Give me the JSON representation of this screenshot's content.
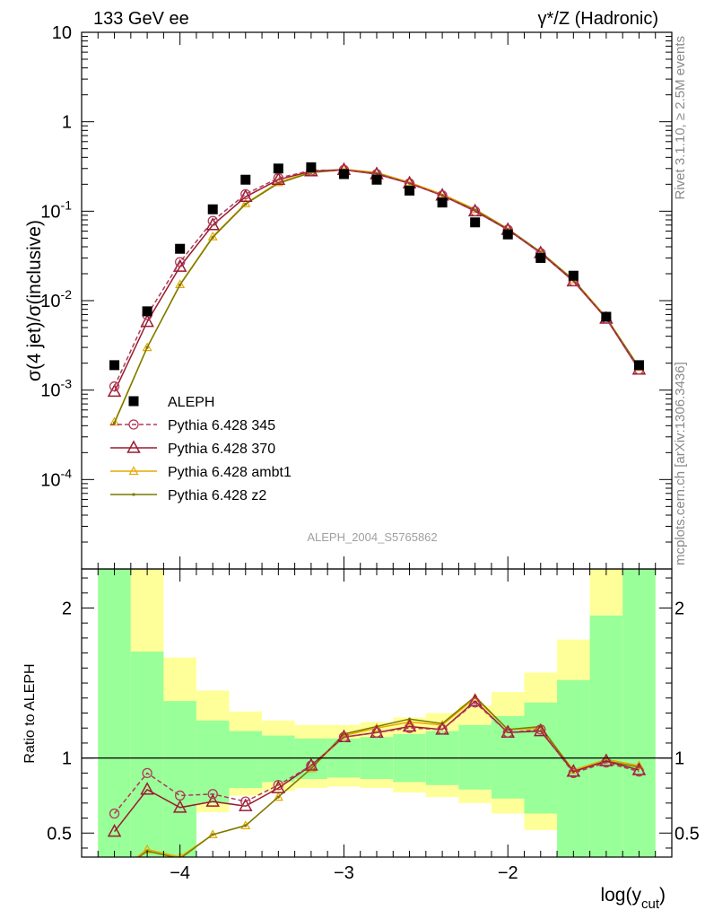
{
  "header": {
    "left": "133 GeV ee",
    "right": "γ*/Z (Hadronic)"
  },
  "side_labels": {
    "rivet": "Rivet 3.1.10, ≥ 2.5M events",
    "mcplots": "mcplots.cern.ch [arXiv:1306.3436]"
  },
  "watermark": "ALEPH_2004_S5765862",
  "colors": {
    "data": "#000000",
    "p345": "#b03a5a",
    "p370": "#9b1b30",
    "ambt1": "#e8a800",
    "z2": "#7a7a00",
    "band_inner": "#99ff99",
    "band_outer": "#ffff99"
  },
  "chart_data": [
    {
      "type": "line",
      "panel": "main",
      "ylabel": "σ(4 jet)/σ(inclusive)",
      "xlim": [
        -4.6,
        -1.0
      ],
      "ylim": [
        1e-05,
        10
      ],
      "yscale": "log",
      "ytick_labels": [
        "10",
        "1",
        "10-1",
        "10-2",
        "10-3",
        "10-4"
      ],
      "legend_position": "lower-left",
      "x": [
        -4.4,
        -4.2,
        -4.0,
        -3.8,
        -3.6,
        -3.4,
        -3.2,
        -3.0,
        -2.8,
        -2.6,
        -2.4,
        -2.2,
        -2.0,
        -1.8,
        -1.6,
        -1.4,
        -1.2
      ],
      "series": [
        {
          "name": "ALEPH",
          "key": "data",
          "marker": "square",
          "values": [
            0.0019,
            0.0076,
            0.038,
            0.105,
            0.225,
            0.3,
            0.31,
            0.26,
            0.225,
            0.17,
            0.125,
            0.075,
            0.055,
            0.03,
            0.019,
            0.0066,
            0.0019
          ]
        },
        {
          "name": "Pythia 6.428 345",
          "key": "p345",
          "marker": "circle",
          "dash": true,
          "values": [
            0.0011,
            0.0069,
            0.027,
            0.078,
            0.155,
            0.235,
            0.285,
            0.29,
            0.26,
            0.205,
            0.15,
            0.1,
            0.062,
            0.034,
            0.0165,
            0.0063,
            0.0017
          ]
        },
        {
          "name": "Pythia 6.428 370",
          "key": "p370",
          "marker": "triangle",
          "values": [
            0.00096,
            0.0058,
            0.024,
            0.07,
            0.145,
            0.225,
            0.28,
            0.29,
            0.26,
            0.205,
            0.15,
            0.1,
            0.062,
            0.034,
            0.0165,
            0.0063,
            0.0017
          ]
        },
        {
          "name": "Pythia 6.428 ambt1",
          "key": "ambt1",
          "marker": "triangle-small",
          "values": [
            0.00044,
            0.003,
            0.0152,
            0.052,
            0.122,
            0.21,
            0.275,
            0.295,
            0.27,
            0.21,
            0.155,
            0.105,
            0.064,
            0.035,
            0.0172,
            0.0065,
            0.0018
          ]
        },
        {
          "name": "Pythia 6.428 z2",
          "key": "z2",
          "marker": "dot",
          "values": [
            0.00043,
            0.003,
            0.015,
            0.051,
            0.12,
            0.205,
            0.27,
            0.29,
            0.265,
            0.205,
            0.15,
            0.103,
            0.063,
            0.035,
            0.017,
            0.0064,
            0.0018
          ]
        }
      ]
    },
    {
      "type": "line",
      "panel": "ratio",
      "ylabel": "Ratio to ALEPH",
      "xlabel": "log(y",
      "xlabel_sub": "cut",
      "xlabel_close": ")",
      "xlim": [
        -4.6,
        -1.0
      ],
      "ylim": [
        0.34,
        2.26
      ],
      "xticks": [
        -4,
        -3,
        -2
      ],
      "xtick_labels": [
        "−4",
        "−3",
        "−2"
      ],
      "yticks": [
        0.5,
        1,
        2
      ],
      "ytick_labels": [
        "0.5",
        "1",
        "2"
      ],
      "reference_line": 1,
      "band_edges": [
        -4.5,
        -4.3,
        -4.1,
        -3.9,
        -3.7,
        -3.5,
        -3.3,
        -3.1,
        -2.9,
        -2.7,
        -2.5,
        -2.3,
        -2.1,
        -1.9,
        -1.7,
        -1.5,
        -1.3,
        -1.1
      ],
      "band_inner": {
        "low": [
          0.34,
          0.34,
          0.34,
          0.7,
          0.8,
          0.84,
          0.86,
          0.87,
          0.86,
          0.84,
          0.82,
          0.79,
          0.73,
          0.63,
          0.34,
          0.34,
          0.34
        ],
        "high": [
          2.26,
          1.71,
          1.38,
          1.25,
          1.18,
          1.15,
          1.13,
          1.13,
          1.14,
          1.16,
          1.18,
          1.22,
          1.28,
          1.37,
          1.52,
          1.95,
          2.26
        ]
      },
      "band_outer": {
        "low": [
          0.34,
          0.34,
          0.34,
          0.64,
          0.75,
          0.78,
          0.8,
          0.81,
          0.8,
          0.77,
          0.74,
          0.7,
          0.63,
          0.52,
          0.34,
          0.34,
          0.34
        ],
        "high": [
          2.26,
          2.26,
          1.67,
          1.45,
          1.31,
          1.25,
          1.22,
          1.22,
          1.24,
          1.27,
          1.3,
          1.35,
          1.44,
          1.57,
          1.79,
          2.26,
          2.26
        ]
      },
      "x": [
        -4.4,
        -4.2,
        -4.0,
        -3.8,
        -3.6,
        -3.4,
        -3.2,
        -3.0,
        -2.8,
        -2.6,
        -2.4,
        -2.2,
        -2.0,
        -1.8,
        -1.6,
        -1.4,
        -1.2
      ],
      "series": [
        {
          "name": "Pythia 6.428 345",
          "key": "p345",
          "marker": "circle",
          "dash": true,
          "values": [
            0.63,
            0.9,
            0.75,
            0.76,
            0.71,
            0.82,
            0.95,
            1.14,
            1.17,
            1.2,
            1.19,
            1.37,
            1.17,
            1.19,
            0.9,
            0.97,
            0.91
          ]
        },
        {
          "name": "Pythia 6.428 370",
          "key": "p370",
          "marker": "triangle",
          "values": [
            0.51,
            0.79,
            0.67,
            0.71,
            0.68,
            0.8,
            0.95,
            1.14,
            1.17,
            1.21,
            1.19,
            1.38,
            1.17,
            1.18,
            0.91,
            0.98,
            0.92
          ]
        },
        {
          "name": "Pythia 6.428 ambt1",
          "key": "ambt1",
          "marker": "triangle-small",
          "values": [
            0.23,
            0.39,
            0.34,
            0.49,
            0.55,
            0.74,
            0.93,
            1.15,
            1.2,
            1.24,
            1.22,
            1.4,
            1.19,
            1.2,
            0.92,
            0.99,
            0.95
          ]
        },
        {
          "name": "Pythia 6.428 z2",
          "key": "z2",
          "marker": "dot",
          "values": [
            0.22,
            0.38,
            0.33,
            0.49,
            0.55,
            0.74,
            0.93,
            1.16,
            1.21,
            1.26,
            1.23,
            1.41,
            1.19,
            1.21,
            0.91,
            0.98,
            0.94
          ]
        }
      ]
    }
  ]
}
